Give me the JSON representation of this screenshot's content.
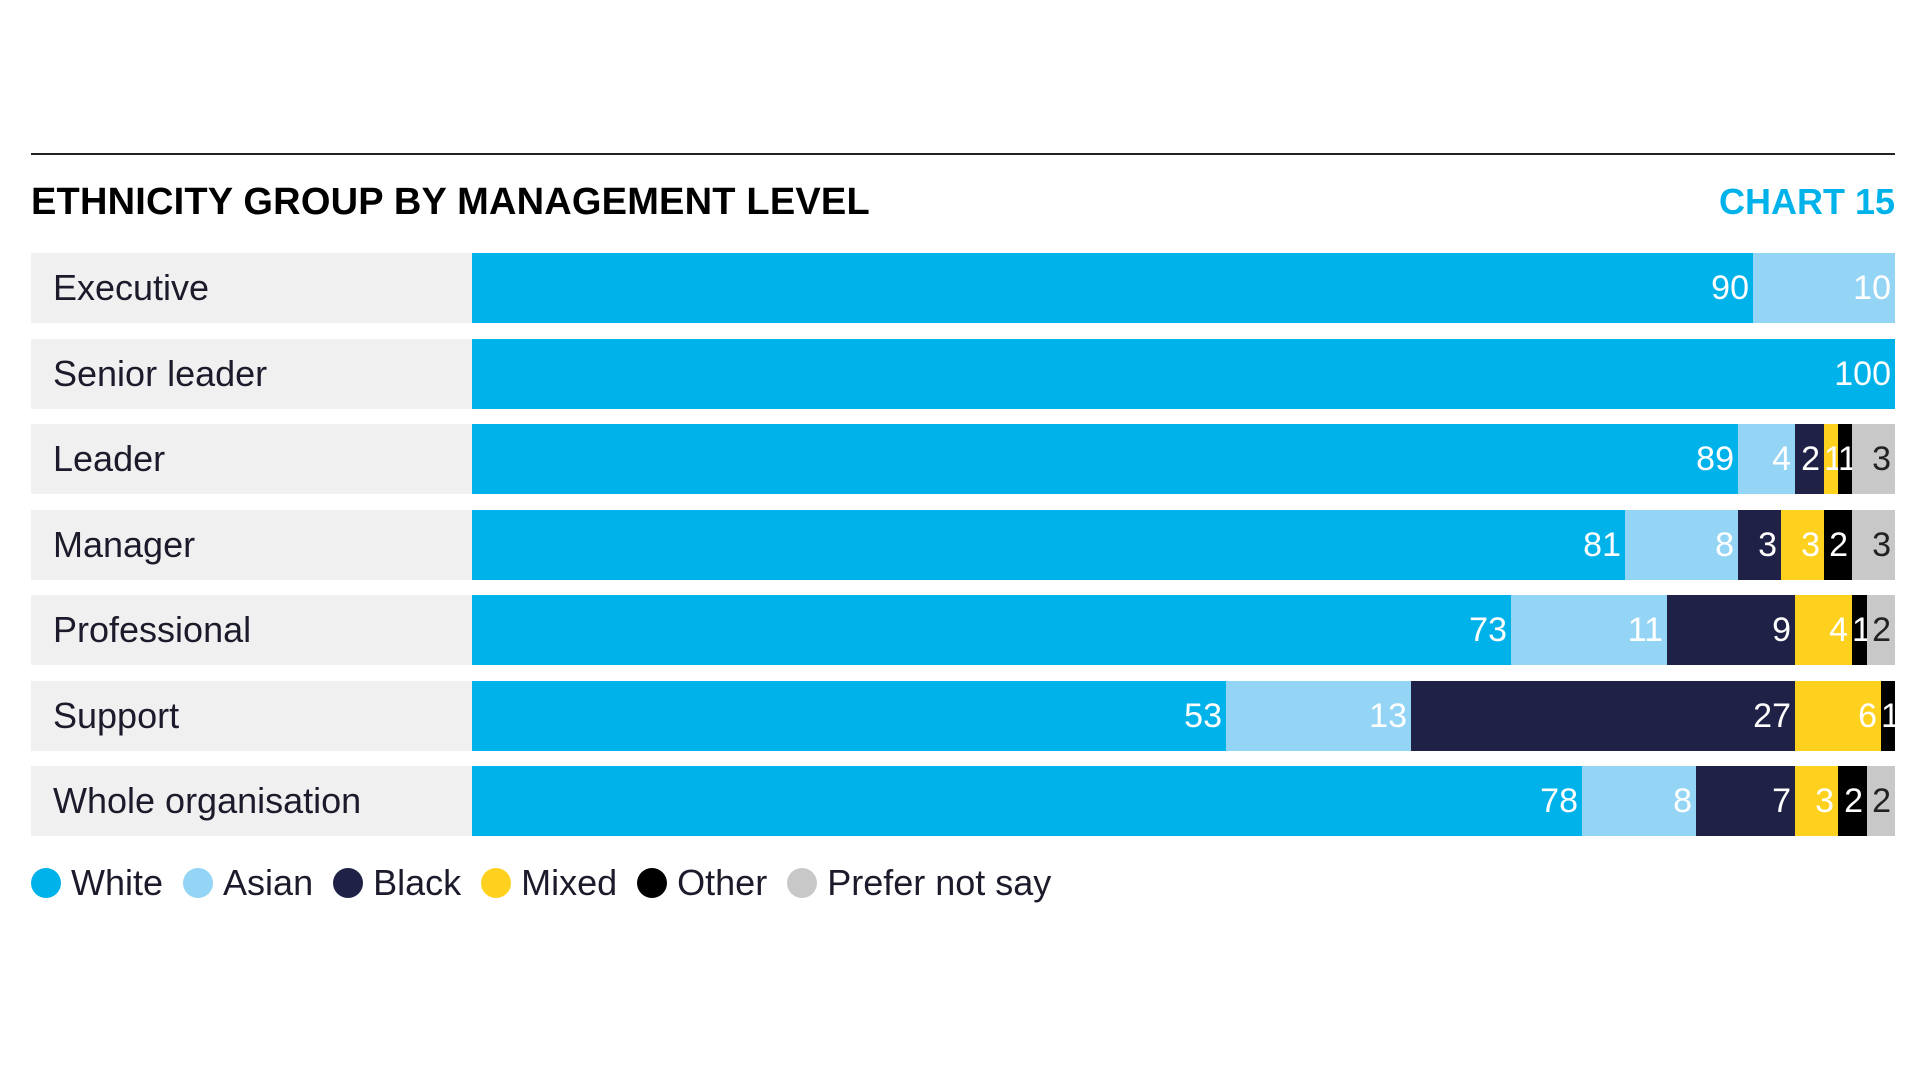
{
  "chart_data": {
    "type": "bar",
    "orientation": "horizontal",
    "stacked": true,
    "title": "ETHNICITY GROUP BY MANAGEMENT LEVEL",
    "chart_number": "CHART 15",
    "xlabel": "",
    "ylabel": "",
    "xlim": [
      0,
      100
    ],
    "grid": false,
    "legend_position": "bottom-left",
    "categories": [
      "Executive",
      "Senior leader",
      "Leader",
      "Manager",
      "Professional",
      "Support",
      "Whole organisation"
    ],
    "series": [
      {
        "name": "White",
        "color": "#00b2ea",
        "label_color": "#ffffff",
        "values": [
          90,
          100,
          89,
          81,
          73,
          53,
          78
        ]
      },
      {
        "name": "Asian",
        "color": "#94d4f4",
        "label_color": "#ffffff",
        "values": [
          10,
          0,
          4,
          8,
          11,
          13,
          8
        ]
      },
      {
        "name": "Black",
        "color": "#1f2147",
        "label_color": "#ffffff",
        "values": [
          0,
          0,
          2,
          3,
          9,
          27,
          7
        ]
      },
      {
        "name": "Mixed",
        "color": "#ffd11f",
        "label_color": "#ffffff",
        "values": [
          0,
          0,
          1,
          3,
          4,
          6,
          3
        ]
      },
      {
        "name": "Other",
        "color": "#000000",
        "label_color": "#ffffff",
        "values": [
          0,
          0,
          1,
          2,
          1,
          1,
          2
        ]
      },
      {
        "name": "Prefer not say",
        "color": "#c8c8c8",
        "label_color": "#222222",
        "values": [
          0,
          0,
          3,
          3,
          2,
          0,
          2
        ]
      }
    ]
  }
}
